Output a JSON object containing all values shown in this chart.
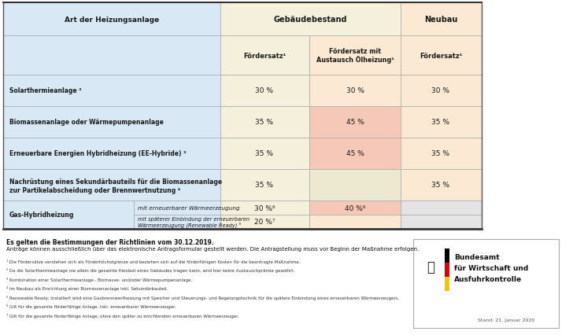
{
  "header_col1": "Art der Heizungsanlage",
  "header_group1": "Gebäudebestand",
  "header_group2": "Neubau",
  "header_sub1": "Fördersatz¹",
  "header_sub2": "Fördersatz mit\nAustausch Ölheizung¹",
  "header_sub3": "Fördersatz¹",
  "rows": [
    {
      "label": "Solarthermieanlage ²",
      "label2": "",
      "sub_label": "",
      "col1": "30 %",
      "col2": "30 %",
      "col3": "30 %",
      "col2_pink": false,
      "col3_gray": false,
      "col2_empty_bg": false,
      "is_gas": false
    },
    {
      "label": "Biomassenanlage oder Wärmepumpenanlage",
      "label2": "",
      "sub_label": "",
      "col1": "35 %",
      "col2": "45 %",
      "col3": "35 %",
      "col2_pink": true,
      "col3_gray": false,
      "col2_empty_bg": false,
      "is_gas": false
    },
    {
      "label": "Erneuerbare Energien Hybridheizung (EE-Hybride) ³",
      "label2": "",
      "sub_label": "",
      "col1": "35 %",
      "col2": "45 %",
      "col3": "35 %",
      "col2_pink": true,
      "col3_gray": false,
      "col2_empty_bg": false,
      "is_gas": false
    },
    {
      "label": "Nachrüstung eines Sekundärbauteils für die Biomassenanlage",
      "label2": "zur Partikelabscheidung oder Brennwertnutzung ⁴",
      "sub_label": "",
      "col1": "35 %",
      "col2": "",
      "col3": "35 %",
      "col2_pink": false,
      "col3_gray": false,
      "col2_empty_bg": true,
      "is_gas": false
    },
    {
      "label": "Gas-Hybridheizung",
      "label2": "",
      "sub_label": "mit erneuerbarer Wärmeerzeugung",
      "col1": "30 %⁶",
      "col2": "40 %⁶",
      "col3": "",
      "col2_pink": true,
      "col3_gray": true,
      "col2_empty_bg": false,
      "is_gas": true
    },
    {
      "label": "",
      "label2": "",
      "sub_label": "mit späterer Einbindung der erneuerbaren\nWärmeerzeugung (Renewable Ready) ⁵",
      "col1": "20 %⁷",
      "col2": "",
      "col3": "",
      "col2_pink": false,
      "col3_gray": true,
      "col2_empty_bg": true,
      "is_gas": true
    }
  ],
  "footnote1": "Es gelten die Bestimmungen der Richtlinien vom 30.12.2019.",
  "footnote2": "Anträge können ausschließlich über das elektronische Antragsformular gestellt werden. Die Antragstellung muss vor Beginn der Maßnahme erfolgen.",
  "footnotes_small": [
    "¹ Die Fördersätze verstehen sich als Förderhöchstgrenze und beziehen sich auf die förderfähigen Kosten für die beantragte Maßnahme.",
    "² Da die Solarthermieanlage nie allein die gesamte Heizlast eines Gebäudes tragen kann, wird hier keine Austauschprämie gewährt.",
    "³ Kombination einer Solarthermieanlage-, Biomasse- und/oder Wärmepumpenanlage.",
    "⁴ Im Neubau als Einrichtung einer Biomassenanlage inkl. Sekundärbauteil.",
    "⁵ Renewable Ready: Installiert wird eine Gasbrennwertheizung mit Speicher und Steuerungs- und Regelungstechnik für die spätere Einbindung eines erneuerbaren Wärmeerzeugers.",
    "⁶ Gilt für die gesamte förderfähige Anlage, inkl. erneuerbarer Wärmeerzeuger.",
    "⁷ Gilt für die gesamte förderfähige Anlage, ohne den später zu errichtenden erneuerbaren Wärmeerzeuger."
  ],
  "colors": {
    "label_bg": "#d8e8f4",
    "col1_bg": "#f5f0dc",
    "col2_bg": "#fce9d4",
    "col2_pink": "#f5c8b8",
    "col3_bg": "#fce9d4",
    "col3_gray": "#e4e4e4",
    "col2_nachr_bg": "#ede8d0",
    "border_outer": "#555555",
    "border_inner": "#aaaaaa",
    "text_dark": "#1a1a1a",
    "text_mid": "#333333"
  },
  "bafa_text": [
    "Bundesamt",
    "für Wirtschaft und",
    "Ausfuhrkontrolle"
  ],
  "stand_text": "Stand: 21. Januar 2020"
}
